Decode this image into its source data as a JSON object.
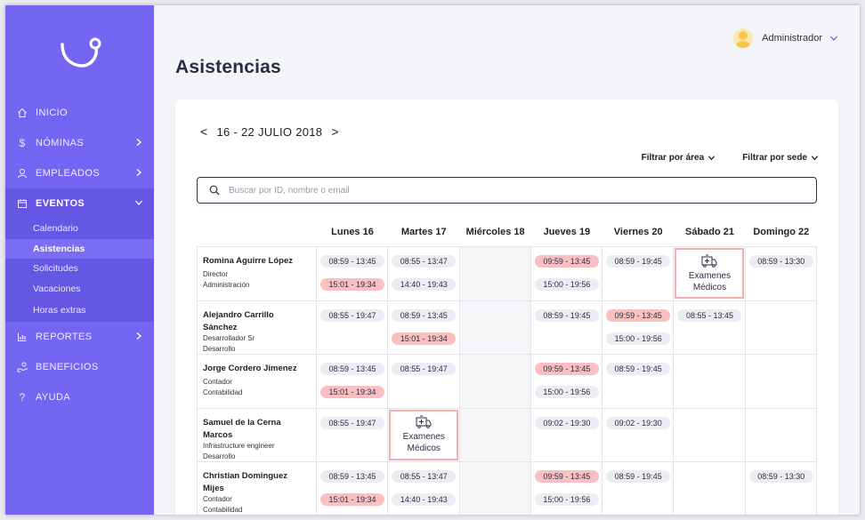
{
  "sidebar": {
    "items": [
      {
        "label": "INICIO",
        "icon": "home-icon"
      },
      {
        "label": "NÓMINAS",
        "icon": "dollar-icon"
      },
      {
        "label": "EMPLEADOS",
        "icon": "person-icon"
      },
      {
        "label": "EVENTOS",
        "icon": "calendar-icon"
      },
      {
        "label": "REPORTES",
        "icon": "chart-icon"
      },
      {
        "label": "BENEFICIOS",
        "icon": "benefits-icon"
      },
      {
        "label": "AYUDA",
        "icon": "help-icon"
      }
    ],
    "eventos_sub": [
      "Calendario",
      "Asistencias",
      "Solicitudes",
      "Vacaciones",
      "Horas extras"
    ],
    "colors": {
      "background": "#7466f3",
      "active": "#6557e4"
    }
  },
  "header": {
    "user_name": "Administrador"
  },
  "page": {
    "title": "Asistencias"
  },
  "week": {
    "range": "16 - 22 JULIO 2018",
    "prev": "<",
    "next": ">"
  },
  "filters": {
    "area": "Filtrar por área",
    "sede": "Filtrar por sede"
  },
  "search": {
    "placeholder": "Buscar por ID, nombre o email",
    "value": ""
  },
  "days": [
    "Lunes 16",
    "Martes 17",
    "Miércoles 18",
    "Jueves 19",
    "Viernes 20",
    "Sábado 21",
    "Domingo 22"
  ],
  "exam_label": [
    "Examenes",
    "Médicos"
  ],
  "colors": {
    "late": "#f9c0c2",
    "normal": "#ececf3",
    "exam_border": "#f4aeb0"
  },
  "employees": [
    {
      "name": [
        "Romina Aguirre López"
      ],
      "role": "Director",
      "dept": "Administración",
      "days": [
        [
          {
            "t": "08:59 - 13:45"
          },
          {
            "t": "15:01 - 19:34",
            "late": true
          }
        ],
        [
          {
            "t": "08:55 - 13:47"
          },
          {
            "t": "14:40 - 19:43"
          }
        ],
        null,
        [
          {
            "t": "09:59 - 13:45",
            "late": true
          },
          {
            "t": "15:00 - 19:56"
          }
        ],
        [
          {
            "t": "08:59 - 19:45"
          }
        ],
        "exam",
        [
          {
            "t": "08:59 - 13:30"
          }
        ]
      ]
    },
    {
      "name": [
        "Alejandro Carrillo",
        "Sánchez"
      ],
      "role": "Desarrollador Sr",
      "dept": "Desarrollo",
      "days": [
        [
          {
            "t": "08:55 - 19:47"
          }
        ],
        [
          {
            "t": "08:59 - 13:45"
          },
          {
            "t": "15:01 - 19:34",
            "late": true
          }
        ],
        null,
        [
          {
            "t": "08:59 - 19:45"
          }
        ],
        [
          {
            "t": "09:59 - 13:45",
            "late": true
          },
          {
            "t": "15:00 - 19:56"
          }
        ],
        [
          {
            "t": "08:55 - 13:45"
          }
        ],
        []
      ]
    },
    {
      "name": [
        "Jorge Cordero Jimenez"
      ],
      "role": "Contador",
      "dept": "Contabilidad",
      "days": [
        [
          {
            "t": "08:59 - 13:45"
          },
          {
            "t": "15:01 - 19:34",
            "late": true
          }
        ],
        [
          {
            "t": "08:55 - 19:47"
          }
        ],
        null,
        [
          {
            "t": "09:59 - 13:45",
            "late": true
          },
          {
            "t": "15:00 - 19:56"
          }
        ],
        [
          {
            "t": "08:59 - 19:45"
          }
        ],
        [],
        []
      ]
    },
    {
      "name": [
        "Samuel de la Cerna",
        "Marcos"
      ],
      "role": "Infrastructure engineer",
      "dept": "Desarrollo",
      "days": [
        [
          {
            "t": "08:55 - 19:47"
          }
        ],
        "exam",
        null,
        [
          {
            "t": "09:02 - 19:30"
          }
        ],
        [
          {
            "t": "09:02 - 19:30"
          }
        ],
        [],
        []
      ]
    },
    {
      "name": [
        "Christian Dominguez",
        "Mijes"
      ],
      "role": "Contador",
      "dept": "Contabilidad",
      "days": [
        [
          {
            "t": "08:59 - 13:45"
          },
          {
            "t": "15:01 - 19:34",
            "late": true
          }
        ],
        [
          {
            "t": "08:55 - 13:47"
          },
          {
            "t": "14:40 - 19:43"
          }
        ],
        null,
        [
          {
            "t": "09:59 - 13:45",
            "late": true
          },
          {
            "t": "15:00 - 19:56"
          }
        ],
        [
          {
            "t": "08:59 - 19:45"
          }
        ],
        [],
        [
          {
            "t": "08:59 - 13:30"
          }
        ]
      ]
    }
  ]
}
